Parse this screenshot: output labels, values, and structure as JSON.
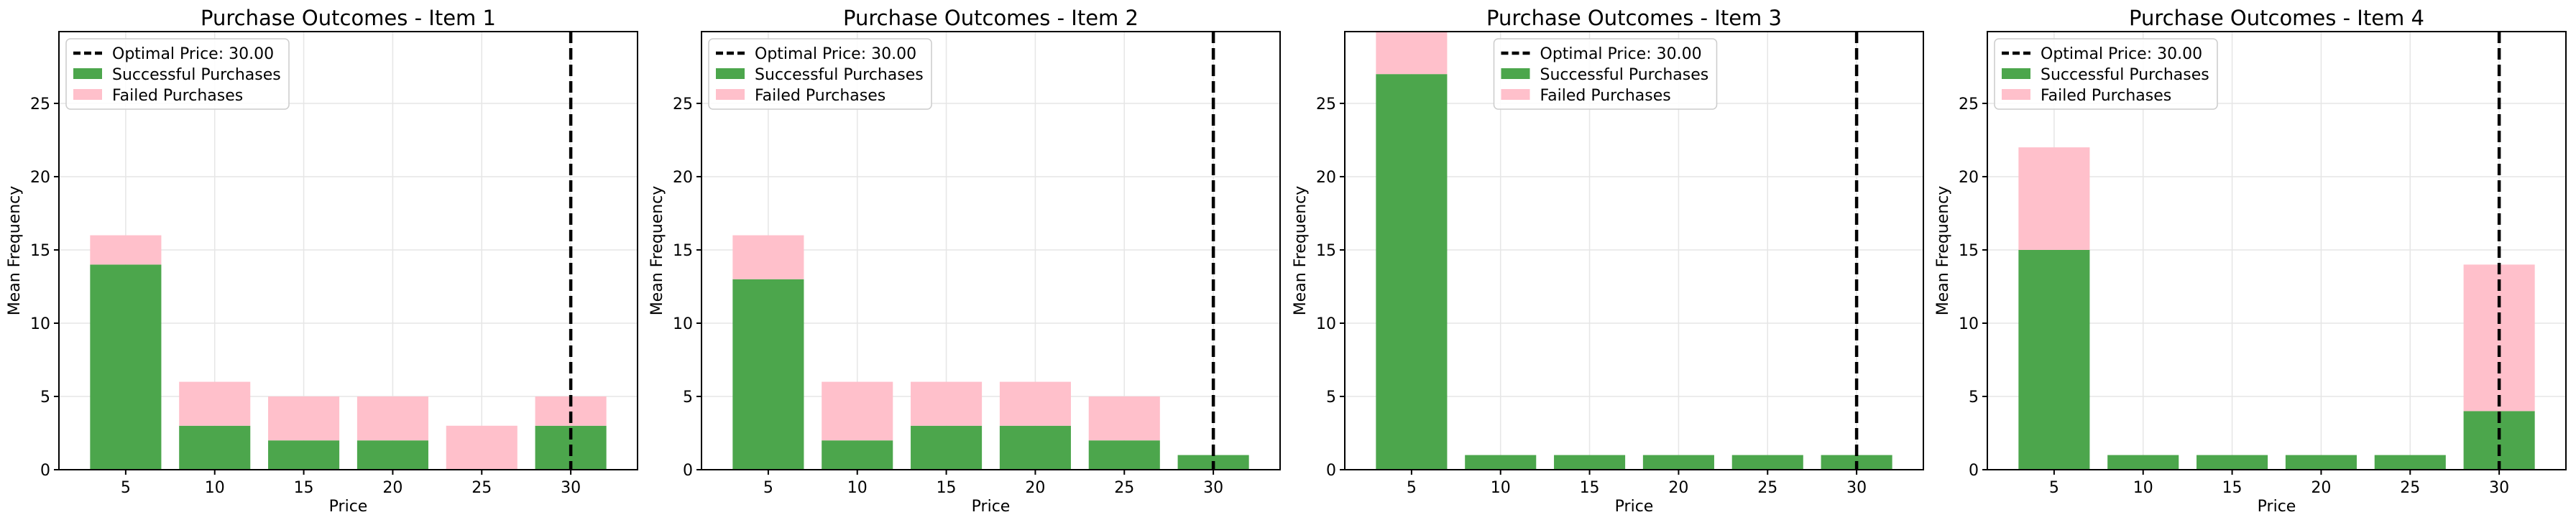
{
  "figure": {
    "colors": {
      "successful": "#4ca64c",
      "failed": "#ffc0cb",
      "optimal_line": "#000000",
      "grid": "#e6e6e6"
    }
  },
  "chart_data": [
    {
      "type": "bar",
      "stacked": true,
      "title": "Purchase Outcomes - Item 1",
      "xlabel": "Price",
      "ylabel": "Mean Frequency",
      "categories": [
        5,
        10,
        15,
        20,
        25,
        30
      ],
      "series": [
        {
          "name": "Successful Purchases",
          "values": [
            14,
            3,
            2,
            2,
            0,
            3
          ]
        },
        {
          "name": "Failed Purchases",
          "values": [
            2,
            3,
            3,
            3,
            3,
            2
          ]
        }
      ],
      "optimal_price": 30,
      "optimal_label": "Optimal Price: 30.00",
      "ylim": [
        0,
        29.9
      ],
      "yticks": [
        0,
        5,
        10,
        15,
        20,
        25
      ],
      "grid": true,
      "legend": "upper left"
    },
    {
      "type": "bar",
      "stacked": true,
      "title": "Purchase Outcomes - Item 2",
      "xlabel": "Price",
      "ylabel": "Mean Frequency",
      "categories": [
        5,
        10,
        15,
        20,
        25,
        30
      ],
      "series": [
        {
          "name": "Successful Purchases",
          "values": [
            13,
            2,
            3,
            3,
            2,
            1
          ]
        },
        {
          "name": "Failed Purchases",
          "values": [
            3,
            4,
            3,
            3,
            3,
            0
          ]
        }
      ],
      "optimal_price": 30,
      "optimal_label": "Optimal Price: 30.00",
      "ylim": [
        0,
        29.9
      ],
      "yticks": [
        0,
        5,
        10,
        15,
        20,
        25
      ],
      "grid": true,
      "legend": "upper left"
    },
    {
      "type": "bar",
      "stacked": true,
      "title": "Purchase Outcomes - Item 3",
      "xlabel": "Price",
      "ylabel": "Mean Frequency",
      "categories": [
        5,
        10,
        15,
        20,
        25,
        30
      ],
      "series": [
        {
          "name": "Successful Purchases",
          "values": [
            27,
            1,
            1,
            1,
            1,
            1
          ]
        },
        {
          "name": "Failed Purchases",
          "values": [
            3,
            0,
            0,
            0,
            0,
            0
          ]
        }
      ],
      "optimal_price": 30,
      "optimal_label": "Optimal Price: 30.00",
      "ylim": [
        0,
        29.9
      ],
      "yticks": [
        0,
        5,
        10,
        15,
        20,
        25
      ],
      "grid": true,
      "legend": "upper center"
    },
    {
      "type": "bar",
      "stacked": true,
      "title": "Purchase Outcomes - Item 4",
      "xlabel": "Price",
      "ylabel": "Mean Frequency",
      "categories": [
        5,
        10,
        15,
        20,
        25,
        30
      ],
      "series": [
        {
          "name": "Successful Purchases",
          "values": [
            15,
            1,
            1,
            1,
            1,
            4
          ]
        },
        {
          "name": "Failed Purchases",
          "values": [
            7,
            0,
            0,
            0,
            0,
            10
          ]
        }
      ],
      "optimal_price": 30,
      "optimal_label": "Optimal Price: 30.00",
      "ylim": [
        0,
        29.9
      ],
      "yticks": [
        0,
        5,
        10,
        15,
        20,
        25
      ],
      "grid": true,
      "legend": "upper left"
    }
  ]
}
